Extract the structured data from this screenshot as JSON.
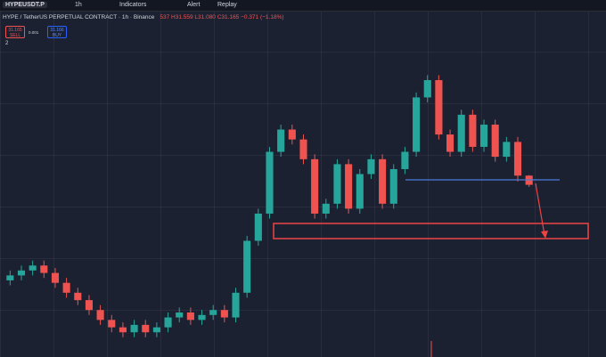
{
  "toolbar": {
    "symbol": "HYPEUSDT.P",
    "interval": "1h",
    "indicators": "Indicators",
    "alert": "Alert",
    "replay": "Replay"
  },
  "legend": {
    "title": "HYPE / TetherUS PERPETUAL CONTRACT · 1h · Binance",
    "ohlc": "537 H31.559 L31.080 C31.165 −0.371 (−1.18%)",
    "indicators_count": "2"
  },
  "trade": {
    "sell_price": "31.165",
    "sell": "SELL",
    "spread": "0.001",
    "buy_price": "31.166",
    "buy": "BUY"
  },
  "chart_data": {
    "type": "candlestick",
    "ylim": [
      24.2,
      37.2
    ],
    "up_color": "#26a69a",
    "down_color": "#ef5350",
    "open": [
      27.3,
      27.5,
      27.7,
      27.9,
      27.6,
      27.2,
      26.8,
      26.5,
      26.1,
      25.7,
      25.4,
      25.2,
      25.5,
      25.2,
      25.4,
      25.8,
      26.0,
      25.7,
      25.9,
      26.1,
      25.8,
      26.8,
      28.9,
      30.0,
      32.5,
      33.4,
      33.0,
      32.2,
      30.0,
      30.4,
      32.0,
      30.2,
      31.6,
      32.2,
      30.4,
      31.8,
      32.5,
      34.7,
      35.4,
      33.2,
      32.5,
      34.0,
      32.7,
      33.6,
      32.3,
      32.9,
      31.537
    ],
    "high": [
      27.7,
      27.9,
      28.1,
      28.1,
      27.8,
      27.4,
      27.0,
      26.7,
      26.3,
      25.9,
      25.6,
      25.7,
      25.7,
      25.6,
      26.0,
      26.2,
      26.2,
      26.1,
      26.3,
      26.3,
      27.0,
      29.1,
      30.2,
      32.7,
      33.6,
      33.6,
      33.2,
      32.4,
      30.6,
      32.2,
      32.2,
      31.8,
      32.4,
      32.4,
      32.0,
      32.7,
      34.9,
      35.6,
      35.6,
      33.4,
      34.2,
      34.2,
      33.8,
      33.8,
      33.1,
      33.1,
      31.559
    ],
    "low": [
      27.1,
      27.3,
      27.5,
      27.4,
      27.0,
      26.6,
      26.3,
      25.9,
      25.5,
      25.2,
      25.0,
      25.0,
      25.0,
      25.0,
      25.2,
      25.6,
      25.5,
      25.5,
      25.7,
      25.6,
      25.6,
      26.6,
      28.7,
      29.8,
      32.3,
      32.8,
      32.0,
      29.8,
      29.8,
      30.2,
      30.0,
      30.0,
      31.4,
      30.2,
      30.2,
      31.6,
      32.3,
      34.5,
      33.0,
      32.3,
      32.3,
      32.5,
      32.5,
      32.1,
      32.1,
      31.3,
      31.08
    ],
    "close": [
      27.5,
      27.7,
      27.9,
      27.6,
      27.2,
      26.8,
      26.5,
      26.1,
      25.7,
      25.4,
      25.2,
      25.5,
      25.2,
      25.4,
      25.8,
      26.0,
      25.7,
      25.9,
      26.1,
      25.8,
      26.8,
      28.9,
      30.0,
      32.5,
      33.4,
      33.0,
      32.2,
      30.0,
      30.4,
      32.0,
      30.2,
      31.6,
      32.2,
      30.4,
      31.8,
      32.5,
      34.7,
      35.4,
      33.2,
      32.5,
      34.0,
      32.7,
      33.6,
      32.3,
      32.9,
      31.537,
      31.165
    ]
  }
}
